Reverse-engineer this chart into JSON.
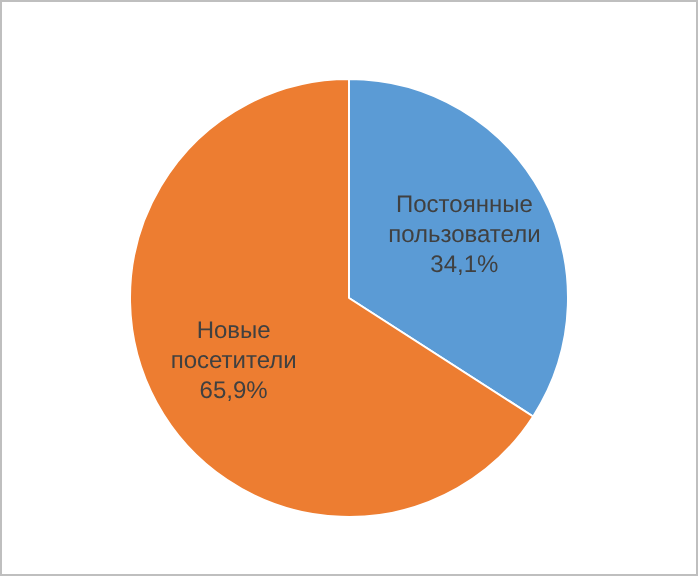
{
  "chart_data": {
    "type": "pie",
    "categories": [
      "Постоянные пользователи",
      "Новые посетители"
    ],
    "values": [
      34.1,
      65.9
    ],
    "value_labels": [
      "34,1%",
      "65,9%"
    ],
    "colors": [
      "#5b9bd5",
      "#ed7d31"
    ],
    "legend": false
  }
}
